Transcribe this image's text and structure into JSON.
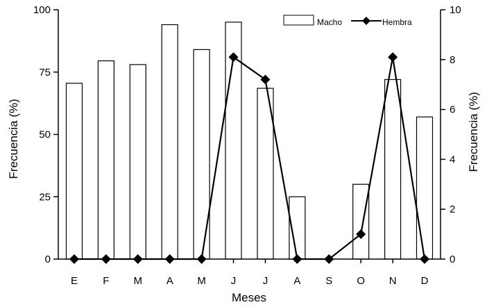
{
  "chart_data": {
    "type": "bar",
    "title": "",
    "xlabel": "Meses",
    "ylabel": "Frecuencia (%)",
    "y2label": "Frecuencia (%)",
    "ylim": [
      0,
      100
    ],
    "y2lim": [
      0,
      10
    ],
    "yticks": [
      "0",
      "25",
      "50",
      "75",
      "100"
    ],
    "y2ticks": [
      "0",
      "2",
      "4",
      "6",
      "8",
      "10"
    ],
    "categories": [
      "E",
      "F",
      "M",
      "A",
      "M",
      "J",
      "J",
      "A",
      "S",
      "O",
      "N",
      "D"
    ],
    "legend_position": "top-right",
    "grid": false,
    "series": [
      {
        "name": "Macho",
        "type": "bar",
        "axis": "left",
        "values": [
          70.5,
          79.5,
          78,
          94,
          84,
          95,
          68.5,
          25,
          0,
          30,
          72,
          57
        ]
      },
      {
        "name": "Hembra",
        "type": "line",
        "axis": "right",
        "marker": "diamond",
        "values": [
          0,
          0,
          0,
          0,
          0,
          8.1,
          7.2,
          0,
          0,
          1.0,
          8.1,
          0
        ]
      }
    ]
  }
}
